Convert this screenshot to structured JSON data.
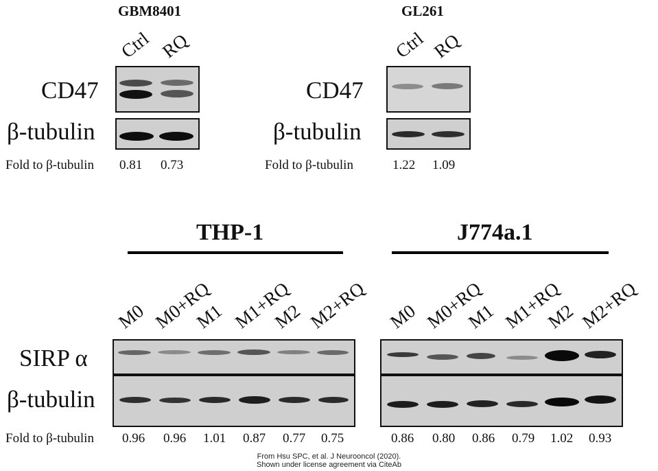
{
  "figure": {
    "gbm": {
      "title": "GBM8401",
      "lanes": [
        "Ctrl",
        "RQ"
      ],
      "cd47_label": "CD47",
      "tubulin_label": "β-tubulin",
      "fold_label": "Fold to β-tubulin",
      "folds": [
        "0.81",
        "0.73"
      ]
    },
    "gl": {
      "title": "GL261",
      "lanes": [
        "Ctrl",
        "RQ"
      ],
      "cd47_label": "CD47",
      "tubulin_label": "β-tubulin",
      "fold_label": "Fold to β-tubulin",
      "folds": [
        "1.22",
        "1.09"
      ]
    },
    "thp": {
      "title": "THP-1",
      "lanes": [
        "M0",
        "M0+RQ",
        "M1",
        "M1+RQ",
        "M2",
        "M2+RQ"
      ],
      "folds": [
        "0.96",
        "0.96",
        "1.01",
        "0.87",
        "0.77",
        "0.75"
      ]
    },
    "j774": {
      "title": "J774a.1",
      "lanes": [
        "M0",
        "M0+RQ",
        "M1",
        "M1+RQ",
        "M2",
        "M2+RQ"
      ],
      "folds": [
        "0.86",
        "0.80",
        "0.86",
        "0.79",
        "1.02",
        "0.93"
      ]
    },
    "bottom_labels": {
      "sirp": "SIRP α",
      "tubulin": "β-tubulin",
      "fold": "Fold to β-tubulin"
    }
  },
  "credit": {
    "line1": "From Hsu SPC, et al. J Neurooncol (2020).",
    "line2": "Shown under license agreement via CiteAb"
  }
}
